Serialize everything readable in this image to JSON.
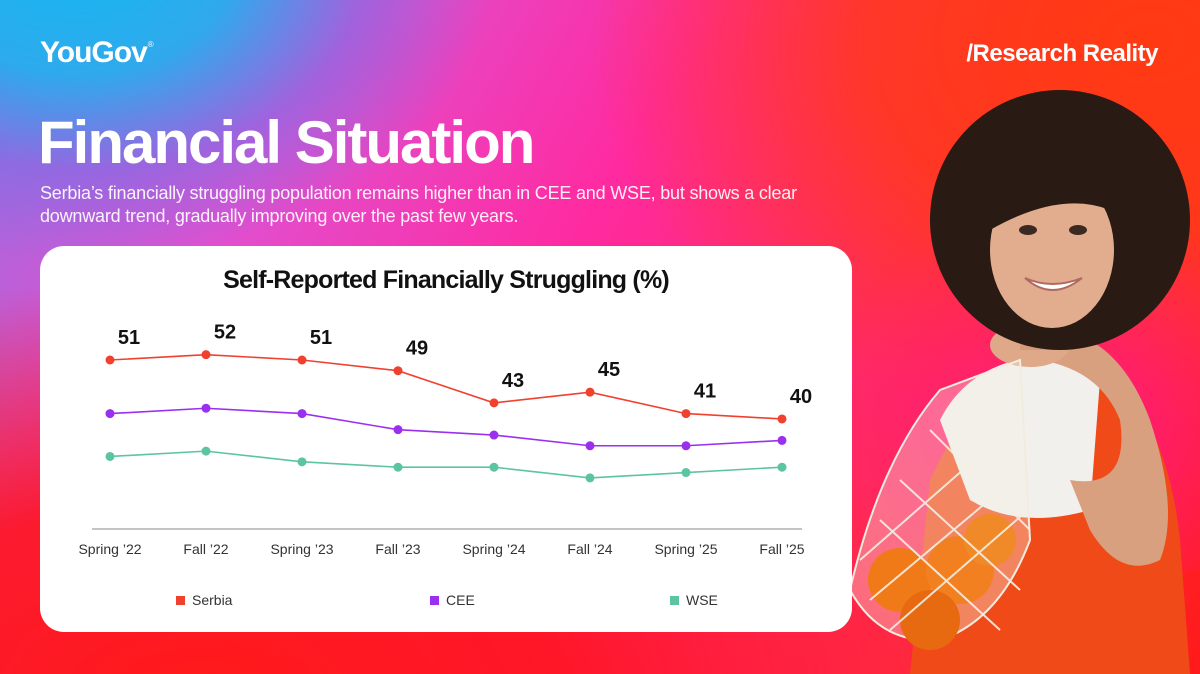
{
  "brand": {
    "logo": "YouGov",
    "logo_mark": "®",
    "tagline": "/Research Reality"
  },
  "page": {
    "title": "Financial Situation",
    "subtitle": "Serbia’s financially struggling population remains higher than in CEE and WSE, but shows a clear downward trend, gradually improving over the past few years."
  },
  "image": {
    "description": "Smiling woman with curly hair carrying a net bag of oranges over her shoulder"
  },
  "colors": {
    "serbia": "#f0412e",
    "cee": "#9b2ff0",
    "wse": "#5cc5a0",
    "axis": "#888888"
  },
  "chart_data": {
    "type": "line",
    "title": "Self-Reported Financially Struggling (%)",
    "xlabel": "",
    "ylabel": "",
    "categories": [
      "Spring ’22",
      "Fall ’22",
      "Spring ’23",
      "Fall ’23",
      "Spring ’24",
      "Fall ’24",
      "Spring ’25",
      "Fall ’25"
    ],
    "series": [
      {
        "name": "Serbia",
        "values": [
          51,
          52,
          51,
          49,
          43,
          45,
          41,
          40
        ],
        "labeled": true
      },
      {
        "name": "CEE",
        "values": [
          41,
          42,
          41,
          38,
          37,
          35,
          35,
          36
        ],
        "labeled": false
      },
      {
        "name": "WSE",
        "values": [
          33,
          34,
          32,
          31,
          31,
          29,
          30,
          31
        ],
        "labeled": false
      }
    ],
    "grid": false,
    "legend_position": "bottom"
  },
  "legend": [
    {
      "label": "Serbia"
    },
    {
      "label": "CEE"
    },
    {
      "label": "WSE"
    }
  ]
}
